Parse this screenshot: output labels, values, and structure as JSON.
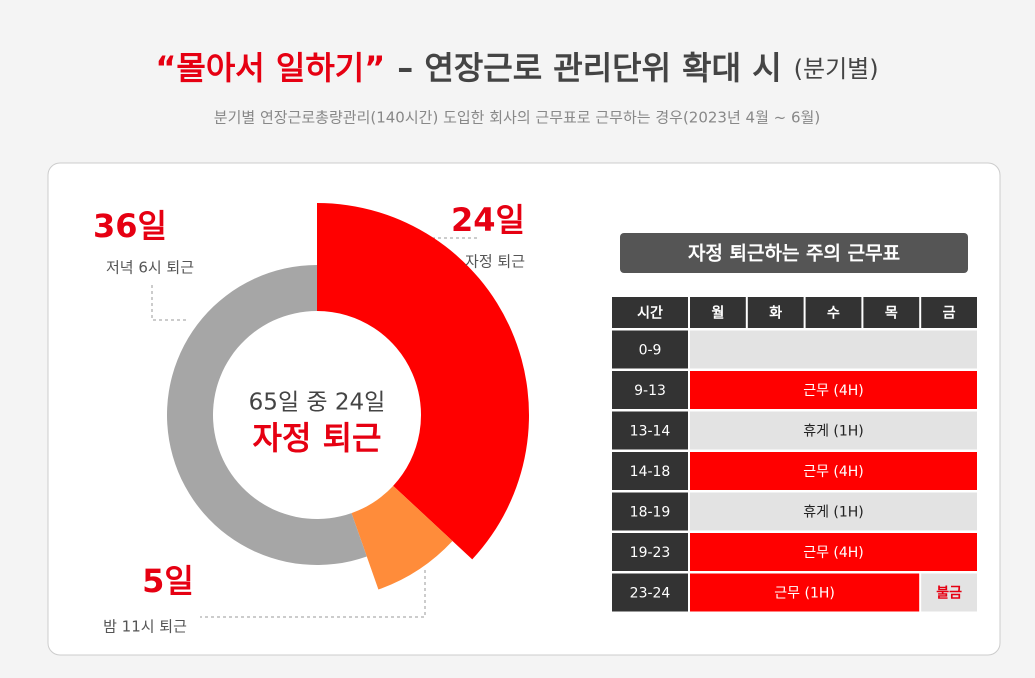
{
  "chart_data": {
    "type": "pie",
    "title_highlight": "“몰아서 일하기”",
    "title": "– 연장근로 관리단위 확대 시",
    "title_note": "(분기별)",
    "subtitle": "분기별 연장근로총량관리(140시간) 도입한 회사의 근무표로 근무하는 경우(2023년 4월 ~ 6월)",
    "categories": [
      "자정 퇴근",
      "밤 11시 퇴근",
      "저녁 6시 퇴근"
    ],
    "values": [
      24,
      5,
      36
    ],
    "value_labels": [
      "24일",
      "5일",
      "36일"
    ],
    "colors": [
      "#ff0000",
      "#ff8c3a",
      "#a6a6a6"
    ],
    "center_text": [
      "65일 중 24일",
      "자정 퇴근"
    ]
  },
  "table": {
    "title": "자정 퇴근하는 주의 근무표",
    "header": [
      "시간",
      "월",
      "화",
      "수",
      "목",
      "금"
    ],
    "rows": [
      {
        "time": "0-9",
        "cells": [
          {
            "span": 5,
            "kind": "rest"
          }
        ]
      },
      {
        "time": "9-13",
        "cells": [
          {
            "text": "근무 (4H)",
            "span": 5,
            "kind": "work"
          }
        ]
      },
      {
        "time": "13-14",
        "cells": [
          {
            "text": "휴게 (1H)",
            "span": 5,
            "kind": "rest"
          }
        ]
      },
      {
        "time": "14-18",
        "cells": [
          {
            "text": "근무 (4H)",
            "span": 5,
            "kind": "work"
          }
        ]
      },
      {
        "time": "18-19",
        "cells": [
          {
            "text": "휴게 (1H)",
            "span": 5,
            "kind": "rest"
          }
        ]
      },
      {
        "time": "19-23",
        "cells": [
          {
            "text": "근무 (4H)",
            "span": 5,
            "kind": "work"
          }
        ]
      },
      {
        "time": "23-24",
        "cells": [
          {
            "text": "근무 (1H)",
            "span": 4,
            "kind": "work"
          },
          {
            "text": "불금",
            "span": 1,
            "kind": "off"
          }
        ]
      }
    ]
  }
}
